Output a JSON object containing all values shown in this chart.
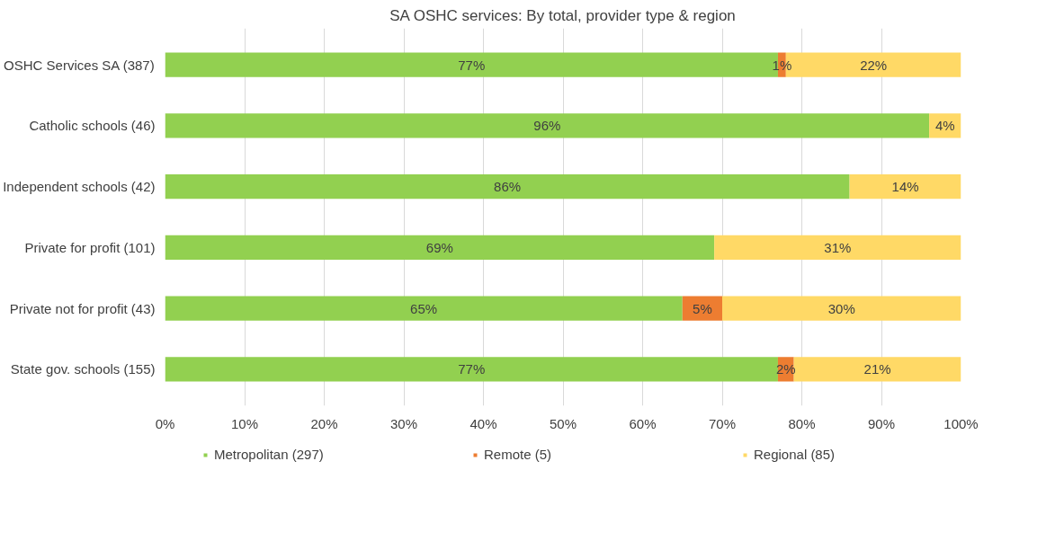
{
  "chart_data": {
    "type": "bar",
    "orientation": "horizontal",
    "stacked": true,
    "title": "SA OSHC services: By total, provider type & region",
    "categories": [
      "OSHC Services SA (387)",
      "Catholic schools (46)",
      "Independent schools (42)",
      "Private for profit (101)",
      "Private not for profit (43)",
      "State gov. schools (155)"
    ],
    "series": [
      {
        "name": "Metropolitan (297)",
        "color": "#92d050",
        "values": [
          77,
          96,
          86,
          69,
          65,
          77
        ],
        "value_labels": [
          "77%",
          "96%",
          "86%",
          "69%",
          "65%",
          "77%"
        ]
      },
      {
        "name": "Remote (5)",
        "color": "#ed7d31",
        "values": [
          1,
          0,
          0,
          0,
          5,
          2
        ],
        "value_labels": [
          "1%",
          null,
          null,
          null,
          "5%",
          "2%"
        ]
      },
      {
        "name": "Regional (85)",
        "color": "#ffd966",
        "values": [
          22,
          4,
          14,
          31,
          30,
          21
        ],
        "value_labels": [
          "22%",
          "4%",
          "14%",
          "31%",
          "30%",
          "21%"
        ]
      }
    ],
    "xlim": [
      0,
      100
    ],
    "xticks": [
      {
        "value": 0,
        "label": "0%"
      },
      {
        "value": 10,
        "label": "10%"
      },
      {
        "value": 20,
        "label": "20%"
      },
      {
        "value": 30,
        "label": "30%"
      },
      {
        "value": 40,
        "label": "40%"
      },
      {
        "value": 50,
        "label": "50%"
      },
      {
        "value": 60,
        "label": "60%"
      },
      {
        "value": 70,
        "label": "70%"
      },
      {
        "value": 80,
        "label": "80%"
      },
      {
        "value": 90,
        "label": "90%"
      },
      {
        "value": 100,
        "label": "100%"
      }
    ],
    "grid": "x",
    "legend": "bottom"
  }
}
